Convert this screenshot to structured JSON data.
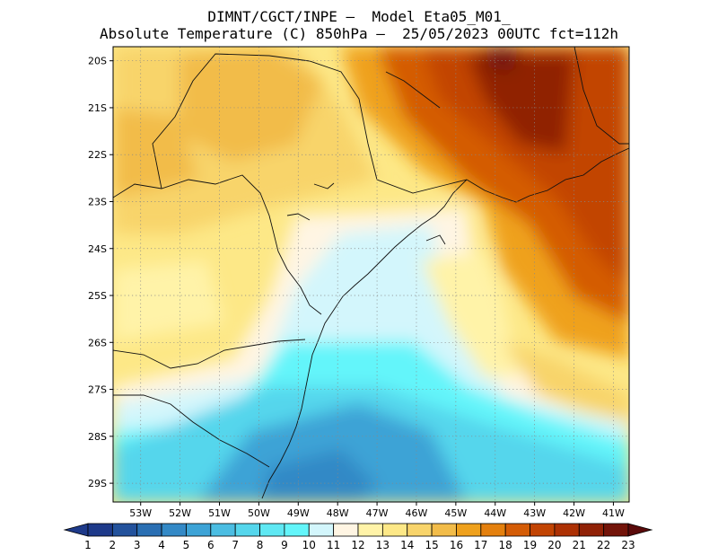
{
  "title": {
    "line1": "DIMNT/CGCT/INPE –  Model Eta05_M01_",
    "line2": "Absolute Temperature (C) 850hPa –  25/05/2023 00UTC fct=112h"
  },
  "map": {
    "lat_labels": [
      "20S",
      "21S",
      "22S",
      "23S",
      "24S",
      "25S",
      "26S",
      "27S",
      "28S",
      "29S"
    ],
    "lon_labels": [
      "53W",
      "52W",
      "51W",
      "50W",
      "49W",
      "48W",
      "47W",
      "46W",
      "45W",
      "44W",
      "43W",
      "42W",
      "41W"
    ],
    "lat_values": [
      -20,
      -21,
      -22,
      -23,
      -24,
      -25,
      -26,
      -27,
      -28,
      -29
    ],
    "lon_values": [
      -53,
      -52,
      -51,
      -50,
      -49,
      -48,
      -47,
      -46,
      -45,
      -44,
      -43,
      -42,
      -41
    ],
    "lat_range": [
      -29.4,
      -19.7
    ],
    "lon_range": [
      -53.7,
      -40.6
    ],
    "gridlines": true
  },
  "colorbar": {
    "labels": [
      "1",
      "2",
      "3",
      "4",
      "5",
      "6",
      "7",
      "8",
      "9",
      "10",
      "11",
      "12",
      "13",
      "14",
      "15",
      "16",
      "17",
      "18",
      "19",
      "20",
      "21",
      "22",
      "23"
    ],
    "colors": [
      "#1e3a8a",
      "#23529c",
      "#2a6fb3",
      "#3389c6",
      "#3da3d6",
      "#4bbde2",
      "#55d6ec",
      "#5fe8f3",
      "#63f5fa",
      "#d3f6fc",
      "#fff5e3",
      "#fff3a8",
      "#fde887",
      "#f8d46b",
      "#f2bc49",
      "#efa11d",
      "#e4800e",
      "#d45c06",
      "#c24403",
      "#ad3104",
      "#902106",
      "#731409"
    ],
    "min_color": "#1e3a8a",
    "max_color": "#5a0a0a"
  }
}
